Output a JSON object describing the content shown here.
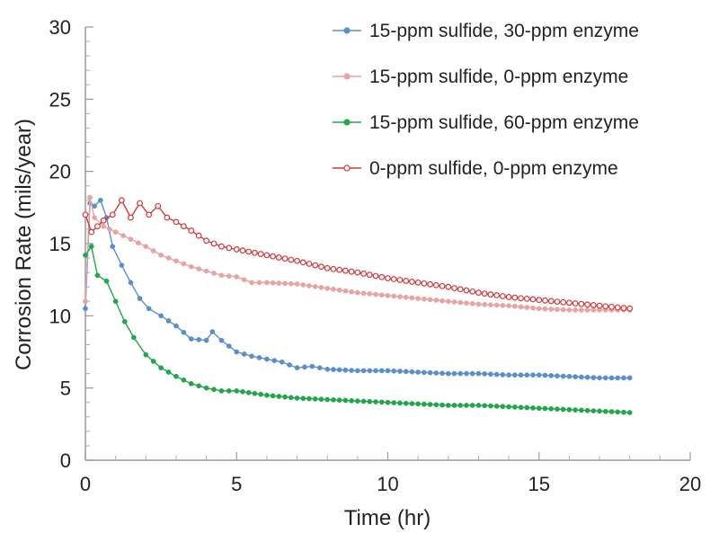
{
  "chart_data": {
    "type": "line",
    "xlabel": "Time (hr)",
    "ylabel": "Corrosion Rate (mils/year)",
    "xlim": [
      0,
      20
    ],
    "ylim": [
      0,
      30
    ],
    "xticks": [
      "0",
      "5",
      "10",
      "15",
      "20"
    ],
    "yticks": [
      "0",
      "5",
      "10",
      "15",
      "20",
      "25",
      "30"
    ],
    "grid": false,
    "legend_position": "top-right",
    "series": [
      {
        "name": "15-ppm sulfide, 30-ppm enzyme",
        "color": "#5b8fc9",
        "marker": "filled-circle",
        "points": [
          [
            0,
            10.5
          ],
          [
            0.15,
            17.8
          ],
          [
            0.3,
            17.6
          ],
          [
            0.5,
            18.0
          ],
          [
            0.7,
            16.8
          ],
          [
            0.9,
            14.8
          ],
          [
            1.2,
            13.5
          ],
          [
            1.5,
            12.3
          ],
          [
            1.8,
            11.2
          ],
          [
            2.1,
            10.5
          ],
          [
            2.5,
            10.0
          ],
          [
            3.0,
            9.3
          ],
          [
            3.5,
            8.4
          ],
          [
            4.0,
            8.3
          ],
          [
            4.2,
            8.9
          ],
          [
            4.5,
            8.3
          ],
          [
            5.0,
            7.5
          ],
          [
            5.5,
            7.2
          ],
          [
            6.0,
            7.0
          ],
          [
            6.5,
            6.8
          ],
          [
            7.0,
            6.4
          ],
          [
            7.5,
            6.5
          ],
          [
            8.0,
            6.3
          ],
          [
            9.0,
            6.2
          ],
          [
            10.0,
            6.2
          ],
          [
            11.0,
            6.1
          ],
          [
            12.0,
            6.0
          ],
          [
            13.0,
            6.0
          ],
          [
            14.0,
            5.9
          ],
          [
            15.0,
            5.9
          ],
          [
            16.0,
            5.8
          ],
          [
            17.0,
            5.7
          ],
          [
            18.0,
            5.7
          ]
        ]
      },
      {
        "name": "15-ppm sulfide, 0-ppm enzyme",
        "color": "#e8a3a3",
        "marker": "filled-circle",
        "points": [
          [
            0,
            11.0
          ],
          [
            0.15,
            18.2
          ],
          [
            0.3,
            16.8
          ],
          [
            0.6,
            16.2
          ],
          [
            1.0,
            15.8
          ],
          [
            1.5,
            15.3
          ],
          [
            2.0,
            14.8
          ],
          [
            2.5,
            14.2
          ],
          [
            3.0,
            13.8
          ],
          [
            3.5,
            13.4
          ],
          [
            4.0,
            13.1
          ],
          [
            4.5,
            12.8
          ],
          [
            5.0,
            12.7
          ],
          [
            5.5,
            12.3
          ],
          [
            6.0,
            12.3
          ],
          [
            7.0,
            12.2
          ],
          [
            8.0,
            11.9
          ],
          [
            9.0,
            11.6
          ],
          [
            10.0,
            11.4
          ],
          [
            11.0,
            11.2
          ],
          [
            12.0,
            11.0
          ],
          [
            13.0,
            10.8
          ],
          [
            14.0,
            10.7
          ],
          [
            15.0,
            10.5
          ],
          [
            16.0,
            10.4
          ],
          [
            17.0,
            10.4
          ],
          [
            18.0,
            10.4
          ]
        ]
      },
      {
        "name": "15-ppm sulfide, 60-ppm enzyme",
        "color": "#22a64a",
        "marker": "filled-circle",
        "points": [
          [
            0,
            14.2
          ],
          [
            0.2,
            14.8
          ],
          [
            0.4,
            12.8
          ],
          [
            0.7,
            12.4
          ],
          [
            1.0,
            11.0
          ],
          [
            1.3,
            9.6
          ],
          [
            1.6,
            8.5
          ],
          [
            2.0,
            7.3
          ],
          [
            2.5,
            6.4
          ],
          [
            3.0,
            5.8
          ],
          [
            3.5,
            5.3
          ],
          [
            4.0,
            5.0
          ],
          [
            4.5,
            4.8
          ],
          [
            5.0,
            4.8
          ],
          [
            6.0,
            4.5
          ],
          [
            7.0,
            4.3
          ],
          [
            8.0,
            4.2
          ],
          [
            9.0,
            4.1
          ],
          [
            10.0,
            4.0
          ],
          [
            11.0,
            3.9
          ],
          [
            12.0,
            3.8
          ],
          [
            13.0,
            3.8
          ],
          [
            14.0,
            3.7
          ],
          [
            15.0,
            3.6
          ],
          [
            16.0,
            3.5
          ],
          [
            17.0,
            3.4
          ],
          [
            18.0,
            3.3
          ]
        ]
      },
      {
        "name": "0-ppm sulfide, 0-ppm enzyme",
        "color": "#d23a3a",
        "marker": "open-circle",
        "points": [
          [
            0,
            17.0
          ],
          [
            0.2,
            15.8
          ],
          [
            0.4,
            16.2
          ],
          [
            0.6,
            16.6
          ],
          [
            0.9,
            17.0
          ],
          [
            1.2,
            18.0
          ],
          [
            1.5,
            16.8
          ],
          [
            1.8,
            17.8
          ],
          [
            2.1,
            17.0
          ],
          [
            2.4,
            17.6
          ],
          [
            2.7,
            16.8
          ],
          [
            3.0,
            16.5
          ],
          [
            3.5,
            15.9
          ],
          [
            4.0,
            15.2
          ],
          [
            4.5,
            14.8
          ],
          [
            5.0,
            14.6
          ],
          [
            6.0,
            14.2
          ],
          [
            7.0,
            13.8
          ],
          [
            8.0,
            13.3
          ],
          [
            9.0,
            13.0
          ],
          [
            10.0,
            12.6
          ],
          [
            11.0,
            12.3
          ],
          [
            12.0,
            12.0
          ],
          [
            13.0,
            11.6
          ],
          [
            14.0,
            11.3
          ],
          [
            15.0,
            11.1
          ],
          [
            16.0,
            10.9
          ],
          [
            17.0,
            10.7
          ],
          [
            18.0,
            10.5
          ]
        ]
      }
    ]
  }
}
